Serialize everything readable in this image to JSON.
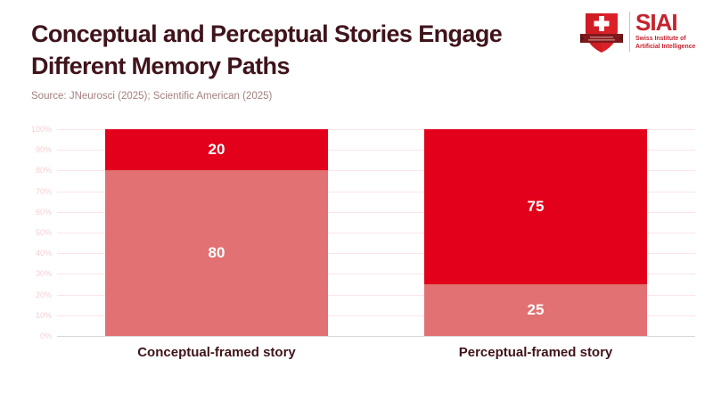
{
  "header": {
    "title_line1": "Conceptual and Perceptual Stories Engage",
    "title_line2": "Different Memory Paths",
    "source": "Source: JNeurosci (2025); Scientific American (2025)"
  },
  "logo": {
    "acronym": "SIAI",
    "tagline_line1": "Swiss Institute of",
    "tagline_line2": "Artificial Intelligence"
  },
  "colors": {
    "title_text": "#40141B",
    "source_text": "#A3807E",
    "bar_red": "#E2001A",
    "bar_light_red": "#E17172",
    "gridline": "#FBE5E7",
    "zero_axis_line": "#D8D8D8",
    "y_tick_text": "#F7CFD3",
    "x_tick_text": "#40141B",
    "logo_red": "#C4242E",
    "shield_red": "#DC2028",
    "ribbon_dark_red": "#7E191E"
  },
  "chart_data": {
    "type": "bar",
    "variant": "stacked",
    "title": "Conceptual and Perceptual Stories Engage Different Memory Paths",
    "categories": [
      "Conceptual-framed story",
      "Perceptual-framed story"
    ],
    "series": [
      {
        "name": "light-red-bottom-segment",
        "color": "#E17172",
        "values": [
          80,
          25
        ]
      },
      {
        "name": "red-top-segment",
        "color": "#E2001A",
        "values": [
          20,
          75
        ]
      }
    ],
    "value_labels_shown": true,
    "ylim": [
      0,
      100
    ],
    "yticks": [
      "0%",
      "10%",
      "20%",
      "30%",
      "40%",
      "50%",
      "60%",
      "70%",
      "80%",
      "90%",
      "100%"
    ],
    "grid": true,
    "legend": false,
    "xlabel": "",
    "ylabel": ""
  }
}
